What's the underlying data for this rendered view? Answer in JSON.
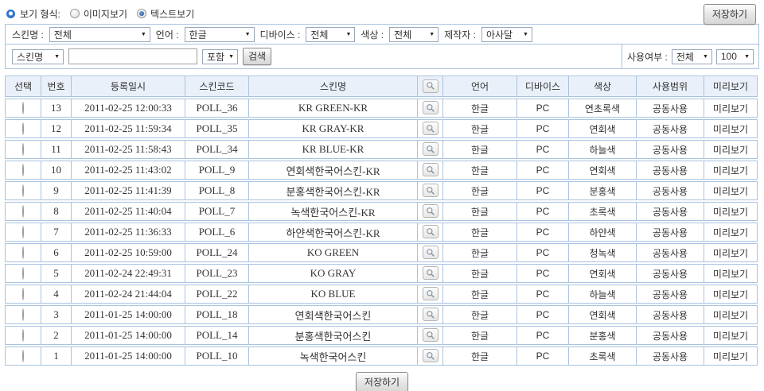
{
  "view_format": {
    "label": "보기 형식:",
    "options": [
      {
        "label": "이미지보기",
        "selected": false
      },
      {
        "label": "텍스트보기",
        "selected": true
      }
    ]
  },
  "top": {
    "save_label": "저장하기"
  },
  "filters": [
    {
      "label": "스킨명 :",
      "value": "전체"
    },
    {
      "label": "언어 :",
      "value": "한글"
    },
    {
      "label": "디바이스 :",
      "value": "전체"
    },
    {
      "label": "색상 :",
      "value": "전체"
    },
    {
      "label": "제작자 :",
      "value": "아사달"
    }
  ],
  "search": {
    "field_select": "스킨명",
    "keyword_value": "",
    "match_select": "포함",
    "button_label": "검색",
    "usage_label": "사용여부 :",
    "usage_select": "전체",
    "page_size_select": "100"
  },
  "icons": {
    "chevron_down": "▼",
    "magnifier": "magnifying-glass-svg"
  },
  "table": {
    "headers": [
      "선택",
      "번호",
      "등록일시",
      "스킨코드",
      "스킨명",
      "",
      "언어",
      "디바이스",
      "색상",
      "사용범위",
      "미리보기"
    ],
    "rows": [
      {
        "no": "13",
        "date": "2011-02-25 12:00:33",
        "code": "POLL_36",
        "name": "KR GREEN-KR",
        "lang": "한글",
        "device": "PC",
        "color": "연초록색",
        "scope": "공동사용",
        "preview": "미리보기",
        "selected": false
      },
      {
        "no": "12",
        "date": "2011-02-25 11:59:34",
        "code": "POLL_35",
        "name": "KR GRAY-KR",
        "lang": "한글",
        "device": "PC",
        "color": "연회색",
        "scope": "공동사용",
        "preview": "미리보기",
        "selected": false
      },
      {
        "no": "11",
        "date": "2011-02-25 11:58:43",
        "code": "POLL_34",
        "name": "KR BLUE-KR",
        "lang": "한글",
        "device": "PC",
        "color": "하늘색",
        "scope": "공동사용",
        "preview": "미리보기",
        "selected": false
      },
      {
        "no": "10",
        "date": "2011-02-25 11:43:02",
        "code": "POLL_9",
        "name": "연회색한국어스킨-KR",
        "lang": "한글",
        "device": "PC",
        "color": "연회색",
        "scope": "공동사용",
        "preview": "미리보기",
        "selected": false
      },
      {
        "no": "9",
        "date": "2011-02-25 11:41:39",
        "code": "POLL_8",
        "name": "분홍색한국어스킨-KR",
        "lang": "한글",
        "device": "PC",
        "color": "분홍색",
        "scope": "공동사용",
        "preview": "미리보기",
        "selected": false
      },
      {
        "no": "8",
        "date": "2011-02-25 11:40:04",
        "code": "POLL_7",
        "name": "녹색한국어스킨-KR",
        "lang": "한글",
        "device": "PC",
        "color": "초록색",
        "scope": "공동사용",
        "preview": "미리보기",
        "selected": false
      },
      {
        "no": "7",
        "date": "2011-02-25 11:36:33",
        "code": "POLL_6",
        "name": "하얀색한국어스킨-KR",
        "lang": "한글",
        "device": "PC",
        "color": "하얀색",
        "scope": "공동사용",
        "preview": "미리보기",
        "selected": false
      },
      {
        "no": "6",
        "date": "2011-02-25 10:59:00",
        "code": "POLL_24",
        "name": "KO GREEN",
        "lang": "한글",
        "device": "PC",
        "color": "청녹색",
        "scope": "공동사용",
        "preview": "미리보기",
        "selected": false
      },
      {
        "no": "5",
        "date": "2011-02-24 22:49:31",
        "code": "POLL_23",
        "name": "KO GRAY",
        "lang": "한글",
        "device": "PC",
        "color": "연회색",
        "scope": "공동사용",
        "preview": "미리보기",
        "selected": false
      },
      {
        "no": "4",
        "date": "2011-02-24 21:44:04",
        "code": "POLL_22",
        "name": "KO BLUE",
        "lang": "한글",
        "device": "PC",
        "color": "하늘색",
        "scope": "공동사용",
        "preview": "미리보기",
        "selected": false
      },
      {
        "no": "3",
        "date": "2011-01-25 14:00:00",
        "code": "POLL_18",
        "name": "연회색한국어스킨",
        "lang": "한글",
        "device": "PC",
        "color": "연회색",
        "scope": "공동사용",
        "preview": "미리보기",
        "selected": true
      },
      {
        "no": "2",
        "date": "2011-01-25 14:00:00",
        "code": "POLL_14",
        "name": "분홍색한국어스킨",
        "lang": "한글",
        "device": "PC",
        "color": "분홍색",
        "scope": "공동사용",
        "preview": "미리보기",
        "selected": false
      },
      {
        "no": "1",
        "date": "2011-01-25 14:00:00",
        "code": "POLL_10",
        "name": "녹색한국어스킨",
        "lang": "한글",
        "device": "PC",
        "color": "초록색",
        "scope": "공동사용",
        "preview": "미리보기",
        "selected": false
      }
    ]
  },
  "bottom": {
    "save_label": "저장하기"
  },
  "colors": {
    "accent": "#2f74c9",
    "table_border": "#a9c3e0",
    "header_bg": "#eaf0fa"
  }
}
